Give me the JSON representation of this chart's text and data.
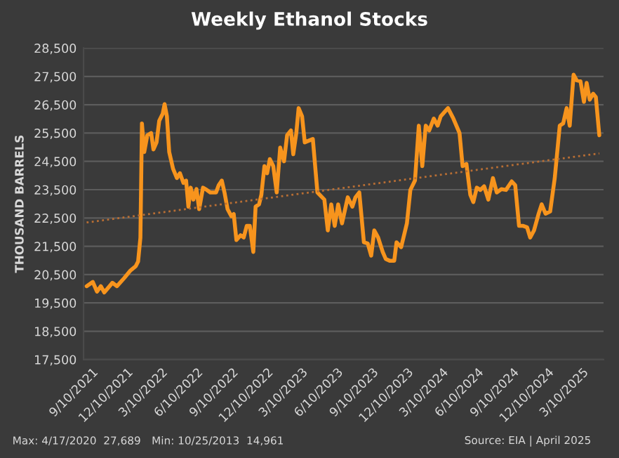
{
  "chart_data": {
    "type": "line",
    "title": "Weekly Ethanol Stocks",
    "ylabel": "THOUSAND BARRELS",
    "annotations": [
      "Max: 4/17/2020  27,689",
      "Min: 10/25/2013  14,961",
      "Source: EIA | April 2025"
    ],
    "xlim": [
      "2021-08-19",
      "2025-05-04"
    ],
    "xticks": [
      {
        "value": "2021-09-10",
        "label": "9/10/2021"
      },
      {
        "value": "2021-12-10",
        "label": "12/10/2021"
      },
      {
        "value": "2022-03-10",
        "label": "3/10/2022"
      },
      {
        "value": "2022-06-10",
        "label": "6/10/2022"
      },
      {
        "value": "2022-09-10",
        "label": "9/10/2022"
      },
      {
        "value": "2022-12-10",
        "label": "12/10/2022"
      },
      {
        "value": "2023-03-10",
        "label": "3/10/2023"
      },
      {
        "value": "2023-06-10",
        "label": "6/10/2023"
      },
      {
        "value": "2023-09-10",
        "label": "9/10/2023"
      },
      {
        "value": "2023-12-10",
        "label": "12/10/2023"
      },
      {
        "value": "2024-03-10",
        "label": "3/10/2024"
      },
      {
        "value": "2024-06-10",
        "label": "6/10/2024"
      },
      {
        "value": "2024-09-10",
        "label": "9/10/2024"
      },
      {
        "value": "2024-12-10",
        "label": "12/10/2024"
      },
      {
        "value": "2025-03-10",
        "label": "3/10/2025"
      }
    ],
    "ylim": [
      17500,
      28500
    ],
    "yticks": [
      {
        "value": 17500,
        "label": "17,500"
      },
      {
        "value": 18500,
        "label": "18,500"
      },
      {
        "value": 19500,
        "label": "19,500"
      },
      {
        "value": 20500,
        "label": "20,500"
      },
      {
        "value": 21500,
        "label": "21,500"
      },
      {
        "value": 22500,
        "label": "22,500"
      },
      {
        "value": 23500,
        "label": "23,500"
      },
      {
        "value": 24500,
        "label": "24,500"
      },
      {
        "value": 25500,
        "label": "25,500"
      },
      {
        "value": 26500,
        "label": "26,500"
      },
      {
        "value": 27500,
        "label": "27,500"
      },
      {
        "value": 28500,
        "label": "28,500"
      }
    ],
    "grid": "y",
    "legend": false,
    "marker": "none",
    "series": [
      {
        "color": "#f7941d",
        "line_style": "solid",
        "x": [
          "2021-08-27",
          "2021-09-12",
          "2021-09-23",
          "2021-10-03",
          "2021-10-12",
          "2021-11-02",
          "2021-11-14",
          "2021-12-03",
          "2021-12-18",
          "2022-01-02",
          "2022-01-08",
          "2022-01-14",
          "2022-01-18",
          "2022-01-24",
          "2022-02-01",
          "2022-02-11",
          "2022-02-17",
          "2022-02-25",
          "2022-03-04",
          "2022-03-13",
          "2022-03-18",
          "2022-03-24",
          "2022-03-30",
          "2022-04-09",
          "2022-04-19",
          "2022-04-27",
          "2022-05-06",
          "2022-05-13",
          "2022-05-19",
          "2022-05-25",
          "2022-06-01",
          "2022-06-09",
          "2022-06-16",
          "2022-06-26",
          "2022-07-06",
          "2022-07-15",
          "2022-07-30",
          "2022-08-06",
          "2022-08-14",
          "2022-08-21",
          "2022-08-29",
          "2022-09-08",
          "2022-09-14",
          "2022-09-21",
          "2022-10-02",
          "2022-10-10",
          "2022-10-18",
          "2022-10-26",
          "2022-11-04",
          "2022-11-10",
          "2022-11-19",
          "2022-11-25",
          "2022-12-03",
          "2022-12-10",
          "2022-12-17",
          "2022-12-26",
          "2023-01-04",
          "2023-01-13",
          "2023-01-23",
          "2023-01-31",
          "2023-02-10",
          "2023-02-16",
          "2023-02-24",
          "2023-03-02",
          "2023-03-11",
          "2023-03-18",
          "2023-04-08",
          "2023-04-20",
          "2023-05-08",
          "2023-05-17",
          "2023-05-26",
          "2023-06-04",
          "2023-06-13",
          "2023-06-23",
          "2023-07-08",
          "2023-07-20",
          "2023-07-28",
          "2023-08-07",
          "2023-08-19",
          "2023-08-29",
          "2023-09-07",
          "2023-09-15",
          "2023-09-25",
          "2023-10-07",
          "2023-10-15",
          "2023-10-25",
          "2023-11-06",
          "2023-11-12",
          "2023-11-24",
          "2023-12-09",
          "2023-12-18",
          "2023-12-30",
          "2024-01-09",
          "2024-01-18",
          "2024-01-27",
          "2024-02-05",
          "2024-02-17",
          "2024-02-27",
          "2024-03-06",
          "2024-03-25",
          "2024-04-08",
          "2024-04-24",
          "2024-05-02",
          "2024-05-12",
          "2024-05-22",
          "2024-05-30",
          "2024-06-08",
          "2024-06-17",
          "2024-06-27",
          "2024-07-08",
          "2024-07-20",
          "2024-07-30",
          "2024-08-11",
          "2024-08-23",
          "2024-09-07",
          "2024-09-16",
          "2024-09-26",
          "2024-10-07",
          "2024-10-17",
          "2024-10-25",
          "2024-11-04",
          "2024-11-16",
          "2024-11-24",
          "2024-12-04",
          "2024-12-16",
          "2024-12-28",
          "2025-01-10",
          "2025-01-19",
          "2025-01-28",
          "2025-02-05",
          "2025-02-15",
          "2025-02-23",
          "2025-03-05",
          "2025-03-14",
          "2025-03-21",
          "2025-03-29",
          "2025-04-07",
          "2025-04-14",
          "2025-04-23"
        ],
        "values": [
          20090,
          20240,
          19900,
          20090,
          19870,
          20210,
          20090,
          20380,
          20630,
          20800,
          20960,
          21800,
          25840,
          24830,
          25420,
          25500,
          24920,
          25170,
          25930,
          26180,
          26520,
          26090,
          24830,
          24240,
          23910,
          24080,
          23740,
          23820,
          22900,
          23570,
          23150,
          23520,
          22810,
          23570,
          23490,
          23400,
          23400,
          23660,
          23820,
          23400,
          22810,
          22560,
          22640,
          21720,
          21890,
          21810,
          22220,
          22220,
          21300,
          22900,
          22980,
          23320,
          24330,
          24080,
          24580,
          24330,
          23400,
          24990,
          24500,
          25420,
          25590,
          24750,
          25500,
          26380,
          26090,
          25170,
          25290,
          23400,
          23150,
          22060,
          22980,
          22220,
          22980,
          22310,
          23230,
          22900,
          23230,
          23400,
          21640,
          21600,
          21170,
          22060,
          21810,
          21300,
          21050,
          20990,
          20990,
          21640,
          21470,
          22310,
          23490,
          23820,
          25760,
          24330,
          25760,
          25590,
          26010,
          25760,
          26090,
          26380,
          26010,
          25500,
          24330,
          24410,
          23320,
          23060,
          23570,
          23490,
          23620,
          23150,
          23910,
          23400,
          23520,
          23490,
          23790,
          23660,
          22220,
          22220,
          22170,
          21810,
          22060,
          22650,
          22980,
          22650,
          22730,
          23910,
          25760,
          25840,
          26380,
          25760,
          27560,
          27360,
          27330,
          26600,
          27270,
          26680,
          26890,
          26770,
          25420
        ]
      },
      {
        "color": "#b86e34",
        "line_style": "dotted",
        "x": [
          "2021-08-27",
          "2025-04-23"
        ],
        "values": [
          22340,
          24780
        ]
      }
    ]
  }
}
